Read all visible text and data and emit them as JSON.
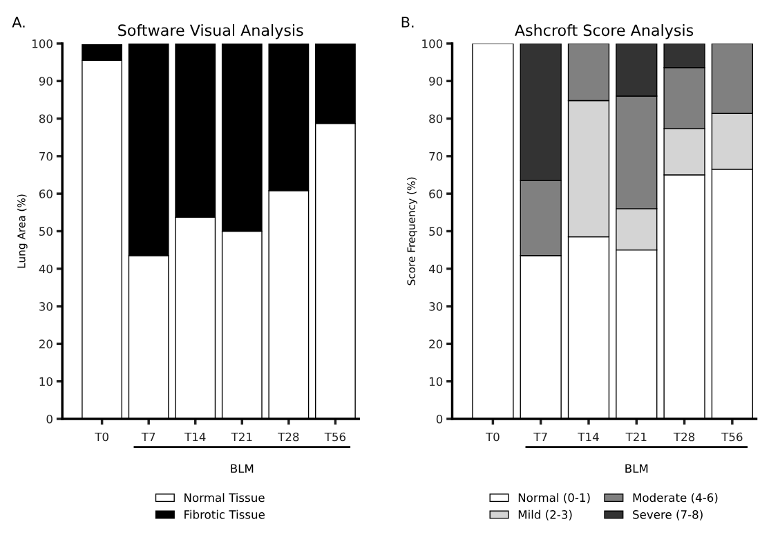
{
  "chart_data": [
    {
      "type": "bar",
      "stacked": true,
      "title": "Software Visual Analysis",
      "ylabel": "Lung Area (%)",
      "categories": [
        "T0",
        "T7",
        "T14",
        "T21",
        "T28",
        "T56"
      ],
      "series": [
        {
          "name": "Normal Tissue",
          "color": "#ffffff",
          "values": [
            95.5,
            43.5,
            53.7,
            50,
            60.8,
            78.7
          ]
        },
        {
          "name": "Fibrotic Tissue",
          "color": "#000000",
          "values": [
            4.2,
            56.5,
            46.3,
            50,
            39.2,
            21.3
          ]
        }
      ],
      "ylim": [
        0,
        100
      ],
      "yticks": [
        0,
        10,
        20,
        30,
        40,
        50,
        60,
        70,
        80,
        90,
        100
      ],
      "grid": false,
      "legend": "bottom",
      "annotations": [
        "A.",
        "BLM"
      ]
    },
    {
      "type": "bar",
      "stacked": true,
      "title": "Ashcroft Score Analysis",
      "ylabel": "Score Frequency (%)",
      "categories": [
        "T0",
        "T7",
        "T14",
        "T21",
        "T28",
        "T56"
      ],
      "series": [
        {
          "name": "Normal (0-1)",
          "color": "#ffffff",
          "values": [
            100,
            43.5,
            48.5,
            45,
            65,
            66.5
          ]
        },
        {
          "name": "Mild (2-3)",
          "color": "#d4d4d4",
          "values": [
            null,
            null,
            36.3,
            11,
            12.3,
            14.9
          ]
        },
        {
          "name": "Moderate (4-6)",
          "color": "#808080",
          "values": [
            null,
            20,
            15.2,
            30,
            16.3,
            18.6
          ]
        },
        {
          "name": "Severe (7-8)",
          "color": "#333333",
          "values": [
            null,
            36.5,
            null,
            14,
            6.4,
            null
          ]
        }
      ],
      "ylim": [
        0,
        100
      ],
      "yticks": [
        0,
        10,
        20,
        30,
        40,
        50,
        60,
        70,
        80,
        90,
        100
      ],
      "grid": false,
      "legend": "bottom",
      "annotations": [
        "B.",
        "BLM"
      ]
    }
  ]
}
